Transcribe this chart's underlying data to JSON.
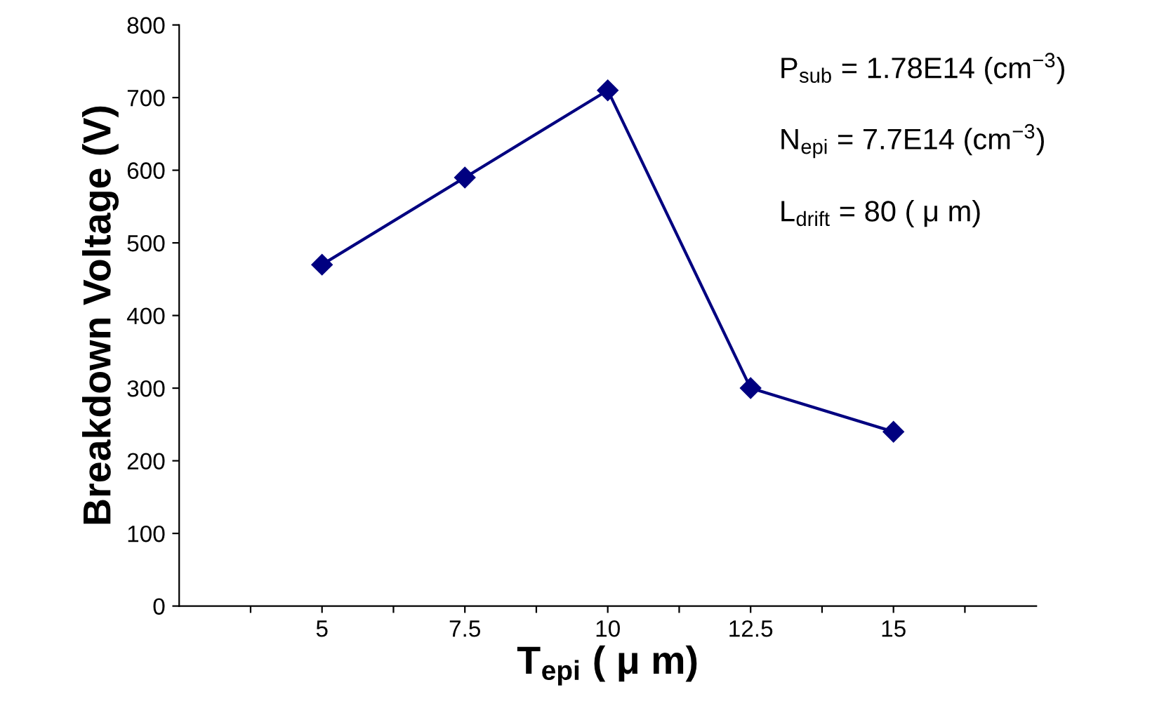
{
  "chart_data": {
    "type": "line",
    "xlabel": "T$_{epi}$ ( μ m)",
    "ylabel": "Breakdown Voltage (V)",
    "x": [
      5,
      7.5,
      10,
      12.5,
      15
    ],
    "series": [
      {
        "color": "#000080",
        "values": [
          470,
          590,
          710,
          300,
          240
        ]
      }
    ],
    "marker": "diamond",
    "line_style": "solid",
    "grid": false,
    "legend": false,
    "xlim": [
      2.5,
      17.5
    ],
    "xticks": [
      {
        "value": 3.75,
        "label": null
      },
      5,
      {
        "value": 6.25,
        "label": null
      },
      7.5,
      {
        "value": 8.75,
        "label": null
      },
      10,
      {
        "value": 11.25,
        "label": null
      },
      12.5,
      {
        "value": 13.75,
        "label": null
      },
      15,
      {
        "value": 16.25,
        "label": null
      }
    ],
    "ylim": [
      0,
      800
    ],
    "yticks": [
      0,
      100,
      200,
      300,
      400,
      500,
      600,
      700,
      800
    ],
    "annotations": [
      "P$_{sub}$ = 1.78E14 (cm$^{−3}$)",
      "N$_{epi}$ = 7.7E14 (cm$^{−3}$)",
      "L$_{drift}$ = 80 ( μ m)"
    ]
  }
}
